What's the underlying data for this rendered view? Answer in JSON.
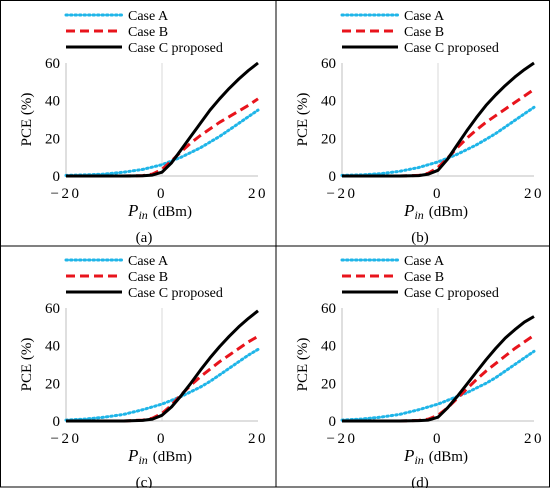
{
  "chart_data": [
    {
      "type": "line",
      "caption": "(a)",
      "xlabel": {
        "symbol": "P",
        "subscript": "in",
        "unit": "(dBm)"
      },
      "ylabel": "PCE (%)",
      "xlim": [
        -20,
        20
      ],
      "ylim": [
        0,
        60
      ],
      "xticks": [
        "−20",
        "0",
        "20"
      ],
      "yticks": [
        "0",
        "20",
        "40",
        "60"
      ],
      "grid": "vertical line at x = 0",
      "legend": "top-left, above plot",
      "series": [
        {
          "name": "Case A",
          "color": "#1fb5e8",
          "style": "dotted",
          "x": [
            -20,
            -16,
            -12,
            -8,
            -4,
            0,
            2,
            4,
            6,
            8,
            10,
            12,
            14,
            16,
            18,
            20
          ],
          "y": [
            0.3,
            0.6,
            1,
            2,
            3.5,
            6,
            8,
            10,
            12.5,
            15,
            18,
            21,
            24.5,
            28,
            31.5,
            35
          ]
        },
        {
          "name": "Case B",
          "color": "#e8141c",
          "style": "dashed",
          "x": [
            -20,
            -16,
            -12,
            -8,
            -4,
            -2,
            0,
            2,
            4,
            6,
            8,
            10,
            12,
            14,
            16,
            18,
            20
          ],
          "y": [
            0,
            0,
            0,
            0,
            0.2,
            1,
            3.5,
            8,
            13,
            17.5,
            21.5,
            25,
            28.5,
            31.5,
            34.5,
            37.5,
            41
          ]
        },
        {
          "name": "Case C proposed",
          "color": "#000000",
          "style": "solid",
          "x": [
            -20,
            -16,
            -12,
            -8,
            -4,
            -2,
            0,
            2,
            4,
            6,
            8,
            10,
            12,
            14,
            16,
            18,
            20
          ],
          "y": [
            0,
            0,
            0,
            0,
            0.1,
            0.5,
            2,
            7,
            14,
            21,
            28,
            35,
            41,
            46.5,
            51.5,
            56,
            60
          ]
        }
      ]
    },
    {
      "type": "line",
      "caption": "(b)",
      "xlabel": {
        "symbol": "P",
        "subscript": "in",
        "unit": "(dBm)"
      },
      "ylabel": "PCE (%)",
      "xlim": [
        -20,
        20
      ],
      "ylim": [
        0,
        60
      ],
      "xticks": [
        "−20",
        "0",
        "20"
      ],
      "yticks": [
        "0",
        "20",
        "40",
        "60"
      ],
      "grid": "vertical line at x = 0",
      "legend": "top-left, above plot",
      "series": [
        {
          "name": "Case A",
          "color": "#1fb5e8",
          "style": "dotted",
          "x": [
            -20,
            -16,
            -12,
            -8,
            -4,
            0,
            2,
            4,
            6,
            8,
            10,
            12,
            14,
            16,
            18,
            20
          ],
          "y": [
            0.3,
            0.6,
            1.2,
            2.5,
            4.5,
            7.5,
            9.5,
            11.5,
            14,
            16.5,
            19.5,
            22.5,
            26,
            29.5,
            33,
            36.5
          ]
        },
        {
          "name": "Case B",
          "color": "#e8141c",
          "style": "dashed",
          "x": [
            -20,
            -16,
            -12,
            -8,
            -4,
            -2,
            0,
            2,
            4,
            6,
            8,
            10,
            12,
            14,
            16,
            18,
            20
          ],
          "y": [
            0,
            0,
            0,
            0,
            0.3,
            1.5,
            4.5,
            9.5,
            15,
            20,
            24.5,
            28.5,
            32,
            35.5,
            39,
            42.5,
            46
          ]
        },
        {
          "name": "Case C proposed",
          "color": "#000000",
          "style": "solid",
          "x": [
            -20,
            -16,
            -12,
            -8,
            -4,
            -2,
            0,
            2,
            4,
            6,
            8,
            10,
            12,
            14,
            16,
            18,
            20
          ],
          "y": [
            0,
            0,
            0,
            0,
            0.2,
            1,
            3,
            9,
            16.5,
            24,
            31,
            37.5,
            43,
            48,
            52.5,
            56.5,
            60
          ]
        }
      ]
    },
    {
      "type": "line",
      "caption": "(c)",
      "xlabel": {
        "symbol": "P",
        "subscript": "in",
        "unit": "(dBm)"
      },
      "ylabel": "PCE (%)",
      "xlim": [
        -20,
        20
      ],
      "ylim": [
        0,
        60
      ],
      "xticks": [
        "−20",
        "0",
        "20"
      ],
      "yticks": [
        "0",
        "20",
        "40",
        "60"
      ],
      "grid": "vertical line at x = 0",
      "legend": "top-left, above plot",
      "series": [
        {
          "name": "Case A",
          "color": "#1fb5e8",
          "style": "dotted",
          "x": [
            -20,
            -16,
            -12,
            -8,
            -4,
            0,
            2,
            4,
            6,
            8,
            10,
            12,
            14,
            16,
            18,
            20
          ],
          "y": [
            0.5,
            1,
            2,
            3.5,
            6,
            9,
            11,
            13,
            15.5,
            18,
            21,
            24.5,
            28,
            31.5,
            35,
            38
          ]
        },
        {
          "name": "Case B",
          "color": "#e8141c",
          "style": "dashed",
          "x": [
            -20,
            -16,
            -12,
            -8,
            -4,
            -2,
            0,
            2,
            4,
            6,
            8,
            10,
            12,
            14,
            16,
            18,
            20
          ],
          "y": [
            0,
            0,
            0,
            0,
            0.5,
            1.5,
            4,
            8.5,
            14,
            19,
            23.5,
            27.5,
            31.5,
            35,
            38.5,
            42,
            45
          ]
        },
        {
          "name": "Case C proposed",
          "color": "#000000",
          "style": "solid",
          "x": [
            -20,
            -16,
            -12,
            -8,
            -4,
            -2,
            0,
            2,
            4,
            6,
            8,
            10,
            12,
            14,
            16,
            18,
            20
          ],
          "y": [
            0,
            0,
            0,
            0,
            0.3,
            1,
            3,
            7.5,
            13.5,
            20,
            27,
            33.5,
            39.5,
            45,
            50,
            54.5,
            58.5
          ]
        }
      ]
    },
    {
      "type": "line",
      "caption": "(d)",
      "xlabel": {
        "symbol": "P",
        "subscript": "in",
        "unit": "(dBm)"
      },
      "ylabel": "PCE (%)",
      "xlim": [
        -20,
        20
      ],
      "ylim": [
        0,
        60
      ],
      "xticks": [
        "−20",
        "0",
        "20"
      ],
      "yticks": [
        "0",
        "20",
        "40",
        "60"
      ],
      "grid": "vertical line at x = 0",
      "legend": "top-left, above plot",
      "series": [
        {
          "name": "Case A",
          "color": "#1fb5e8",
          "style": "dotted",
          "x": [
            -20,
            -16,
            -12,
            -8,
            -4,
            0,
            2,
            4,
            6,
            8,
            10,
            12,
            14,
            16,
            18,
            20
          ],
          "y": [
            0.5,
            1,
            2,
            3.5,
            6,
            9,
            11,
            13,
            15,
            17.5,
            20,
            23,
            26.5,
            30,
            33.5,
            37
          ]
        },
        {
          "name": "Case B",
          "color": "#e8141c",
          "style": "dashed",
          "x": [
            -20,
            -16,
            -12,
            -8,
            -4,
            -2,
            0,
            2,
            4,
            6,
            8,
            10,
            12,
            14,
            16,
            18,
            20
          ],
          "y": [
            0,
            0,
            0,
            0,
            0.3,
            1,
            3,
            7,
            12,
            17,
            22,
            26.5,
            30.5,
            34.5,
            38.5,
            42,
            45.5
          ]
        },
        {
          "name": "Case C proposed",
          "color": "#000000",
          "style": "solid",
          "x": [
            -20,
            -16,
            -12,
            -8,
            -4,
            -2,
            0,
            2,
            4,
            6,
            8,
            10,
            12,
            14,
            16,
            18,
            20
          ],
          "y": [
            0,
            0,
            0,
            0,
            0.2,
            0.5,
            2,
            7,
            13,
            19.5,
            26,
            32.5,
            38.5,
            44,
            48.5,
            52.5,
            55.5
          ]
        }
      ]
    }
  ]
}
